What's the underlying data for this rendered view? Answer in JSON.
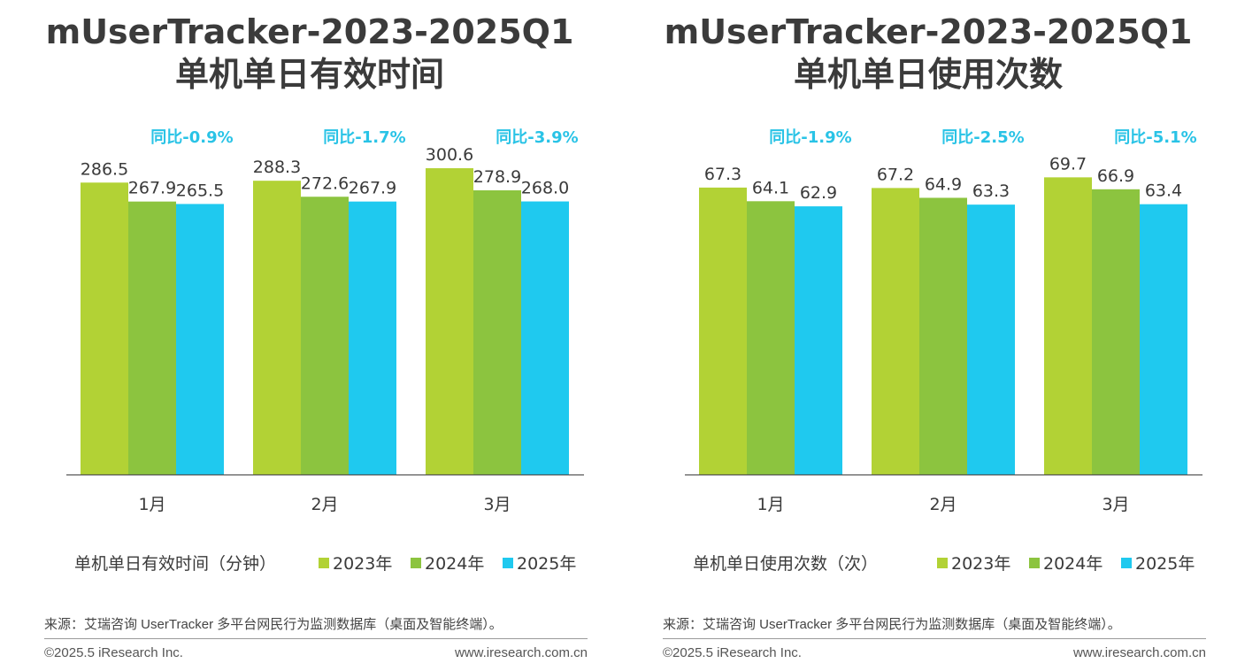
{
  "colors": {
    "s2023": "#b2d235",
    "s2024": "#8cc43f",
    "s2025": "#1fc9ef",
    "yoy": "#29c3e6",
    "axis": "#555555",
    "text": "#3a3a3a"
  },
  "footer": {
    "source": "来源：艾瑞咨询 UserTracker 多平台网民行为监测数据库（桌面及智能终端）。",
    "copyright": "©2025.5 iResearch Inc.",
    "website": "www.iresearch.com.cn"
  },
  "panels": [
    {
      "title_line1": "mUserTracker-2023-2025Q1",
      "title_line2": "单机单日有效时间"
    },
    {
      "title_line1": "mUserTracker-2023-2025Q1",
      "title_line2": "单机单日使用次数"
    }
  ],
  "chart_data": [
    {
      "type": "bar",
      "title": "mUserTracker-2023-2025Q1 单机单日有效时间",
      "metric_label": "单机单日有效时间（分钟）",
      "categories": [
        "1月",
        "2月",
        "3月"
      ],
      "series": [
        {
          "name": "2023年",
          "values": [
            286.5,
            288.3,
            300.6
          ]
        },
        {
          "name": "2024年",
          "values": [
            267.9,
            272.6,
            278.9
          ]
        },
        {
          "name": "2025年",
          "values": [
            265.5,
            267.9,
            268.0
          ]
        }
      ],
      "value_labels": [
        [
          "286.5",
          "288.3",
          "300.6"
        ],
        [
          "267.9",
          "272.6",
          "278.9"
        ],
        [
          "265.5",
          "267.9",
          "268.0"
        ]
      ],
      "yoy": [
        "同比-0.9%",
        "同比-1.7%",
        "同比-3.9%"
      ],
      "ylim": [
        0,
        318
      ],
      "grid": false,
      "legend": "bottom"
    },
    {
      "type": "bar",
      "title": "mUserTracker-2023-2025Q1 单机单日使用次数",
      "metric_label": "单机单日使用次数（次）",
      "categories": [
        "1月",
        "2月",
        "3月"
      ],
      "series": [
        {
          "name": "2023年",
          "values": [
            67.3,
            67.2,
            69.7
          ]
        },
        {
          "name": "2024年",
          "values": [
            64.1,
            64.9,
            66.9
          ]
        },
        {
          "name": "2025年",
          "values": [
            62.9,
            63.3,
            63.4
          ]
        }
      ],
      "value_labels": [
        [
          "67.3",
          "67.2",
          "69.7"
        ],
        [
          "64.1",
          "64.9",
          "66.9"
        ],
        [
          "62.9",
          "63.3",
          "63.4"
        ]
      ],
      "yoy": [
        "同比-1.9%",
        "同比-2.5%",
        "同比-5.1%"
      ],
      "ylim": [
        0,
        76
      ],
      "grid": false,
      "legend": "bottom"
    }
  ]
}
